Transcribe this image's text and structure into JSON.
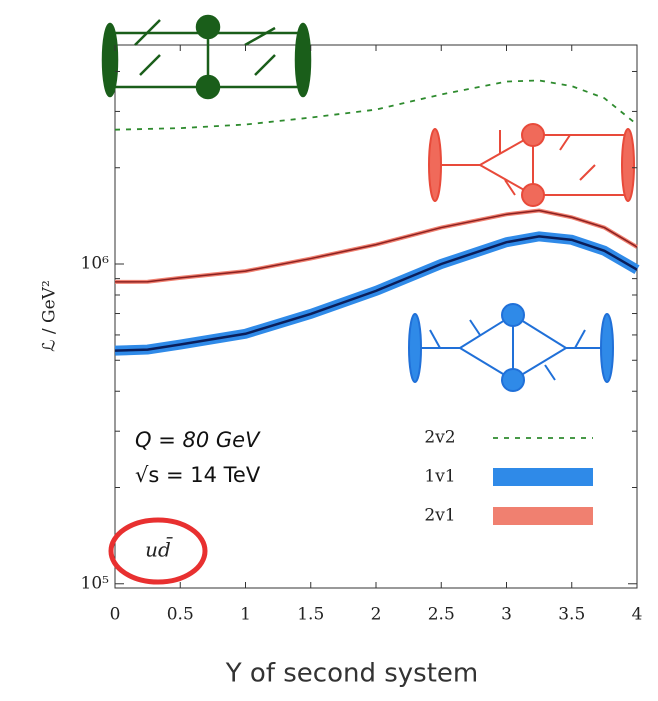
{
  "chart_data": {
    "type": "line",
    "x_label": "Y of second system",
    "y_label": "ℒ / GeV²",
    "annotations": [
      "Q = 80 GeV",
      "√s = 14 TeV",
      "ud̄"
    ],
    "log_y": true,
    "legend": "lower right",
    "xlim": [
      0,
      4
    ],
    "xticks": [
      0,
      0.5,
      1,
      1.5,
      2,
      2.5,
      3,
      3.5,
      4
    ],
    "ylim": [
      97000,
      4840000
    ],
    "yticks": [
      {
        "value": 100000,
        "label": "10⁵"
      },
      {
        "value": 1000000,
        "label": "10⁶"
      }
    ],
    "minor_yticks": [
      200000,
      300000,
      400000,
      500000,
      600000,
      700000,
      800000,
      900000,
      2000000,
      3000000,
      4000000
    ],
    "series": [
      {
        "name": "2v2",
        "color": "#2e8b2e",
        "style": "dashed",
        "x": [
          0,
          0.5,
          1,
          1.5,
          2,
          2.5,
          3,
          3.25,
          3.5,
          3.75,
          4
        ],
        "values": [
          2630000,
          2660000,
          2730000,
          2870000,
          3040000,
          3390000,
          3720000,
          3750000,
          3600000,
          3300000,
          2730000
        ]
      },
      {
        "name": "1v1",
        "color": "#2f8ae8",
        "edge_color": "#0a1e5a",
        "style": "band",
        "x": [
          0,
          0.25,
          0.5,
          1,
          1.5,
          2,
          2.5,
          3,
          3.25,
          3.5,
          3.75,
          4
        ],
        "values": [
          536000,
          540000,
          560000,
          605000,
          698000,
          824000,
          1000000,
          1170000,
          1220000,
          1190000,
          1100000,
          960000
        ]
      },
      {
        "name": "2v1",
        "color": "#f08070",
        "edge_color": "#8b2020",
        "style": "band",
        "x": [
          0,
          0.25,
          0.5,
          1,
          1.5,
          2,
          2.5,
          3,
          3.25,
          3.5,
          3.75,
          4
        ],
        "values": [
          879000,
          880000,
          905000,
          950000,
          1040000,
          1150000,
          1300000,
          1430000,
          1470000,
          1400000,
          1300000,
          1130000
        ]
      }
    ]
  }
}
